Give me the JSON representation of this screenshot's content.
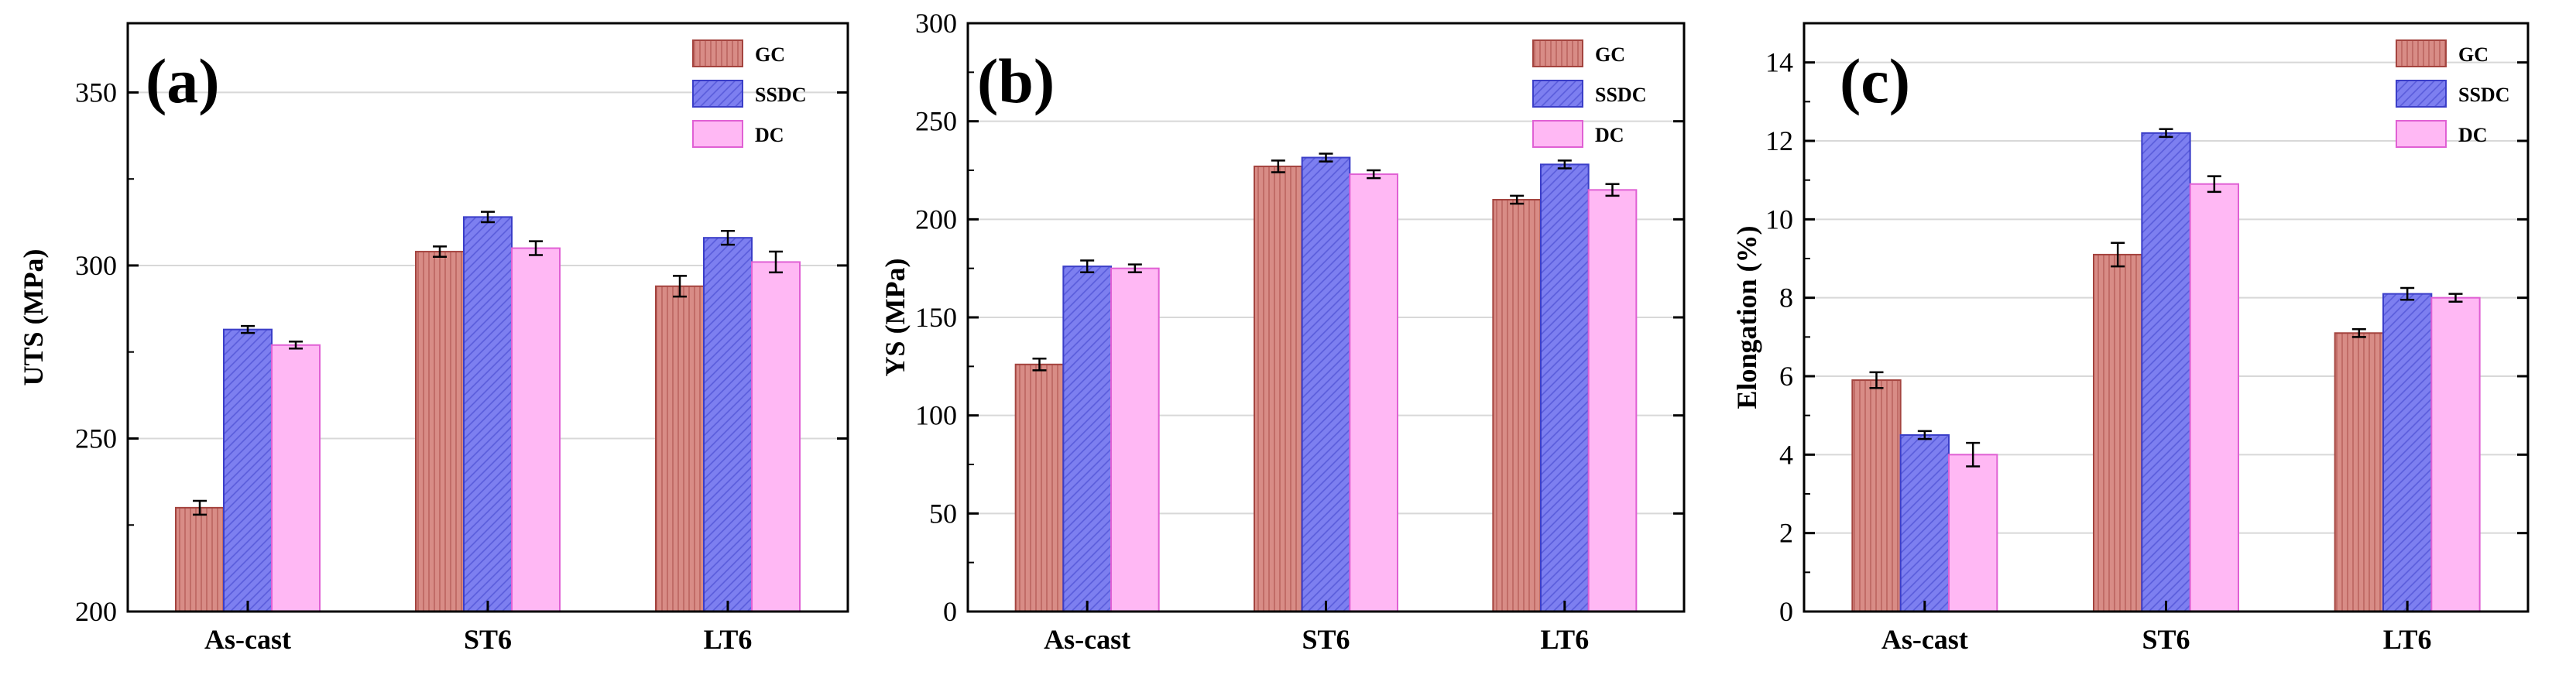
{
  "colors": {
    "GC_fill": "#d88c86",
    "GC_stroke": "#a4443f",
    "SSDC_fill": "#7d7ff0",
    "SSDC_stroke": "#3b3ec8",
    "DC_fill": "#ffb8f4",
    "DC_stroke": "#e060d4",
    "grid": "#d8d8d8"
  },
  "chart_data": [
    {
      "type": "bar",
      "panel_label": "(a)",
      "ylabel": "UTS (MPa)",
      "xlabel": "",
      "ylim": [
        200,
        370
      ],
      "yticks": [
        200,
        250,
        300,
        350
      ],
      "ytick_labels": [
        "200",
        "250",
        "300",
        "350"
      ],
      "grid": true,
      "legend_position": "top-right",
      "categories": [
        "As-cast",
        "ST6",
        "LT6"
      ],
      "series": [
        {
          "name": "GC",
          "values": [
            230,
            304,
            294
          ],
          "errors": [
            2,
            1.5,
            3
          ]
        },
        {
          "name": "SSDC",
          "values": [
            281.5,
            314,
            308
          ],
          "errors": [
            1,
            1.5,
            2
          ]
        },
        {
          "name": "DC",
          "values": [
            277,
            305,
            301
          ],
          "errors": [
            1,
            2,
            3
          ]
        }
      ]
    },
    {
      "type": "bar",
      "panel_label": "(b)",
      "ylabel": "YS (MPa)",
      "xlabel": "",
      "ylim": [
        0,
        300
      ],
      "yticks": [
        0,
        50,
        100,
        150,
        200,
        250,
        300
      ],
      "ytick_labels": [
        "0",
        "50",
        "100",
        "150",
        "200",
        "250",
        "300"
      ],
      "grid": true,
      "legend_position": "top-right",
      "categories": [
        "As-cast",
        "ST6",
        "LT6"
      ],
      "series": [
        {
          "name": "GC",
          "values": [
            126,
            227,
            210
          ],
          "errors": [
            3,
            3,
            2
          ]
        },
        {
          "name": "SSDC",
          "values": [
            176,
            231.5,
            228
          ],
          "errors": [
            3,
            2,
            2
          ]
        },
        {
          "name": "DC",
          "values": [
            175,
            223,
            215
          ],
          "errors": [
            2,
            2,
            3
          ]
        }
      ]
    },
    {
      "type": "bar",
      "panel_label": "(c)",
      "ylabel": "Elongation (%)",
      "xlabel": "",
      "ylim": [
        0,
        15
      ],
      "yticks": [
        0,
        2,
        4,
        6,
        8,
        10,
        12,
        14
      ],
      "ytick_labels": [
        "0",
        "2",
        "4",
        "6",
        "8",
        "10",
        "12",
        "14"
      ],
      "grid": true,
      "legend_position": "top-right",
      "categories": [
        "As-cast",
        "ST6",
        "LT6"
      ],
      "series": [
        {
          "name": "GC",
          "values": [
            5.9,
            9.1,
            7.1
          ],
          "errors": [
            0.2,
            0.3,
            0.1
          ]
        },
        {
          "name": "SSDC",
          "values": [
            4.5,
            12.2,
            8.1
          ],
          "errors": [
            0.1,
            0.1,
            0.15
          ]
        },
        {
          "name": "DC",
          "values": [
            4.0,
            10.9,
            8.0
          ],
          "errors": [
            0.3,
            0.2,
            0.1
          ]
        }
      ]
    }
  ]
}
